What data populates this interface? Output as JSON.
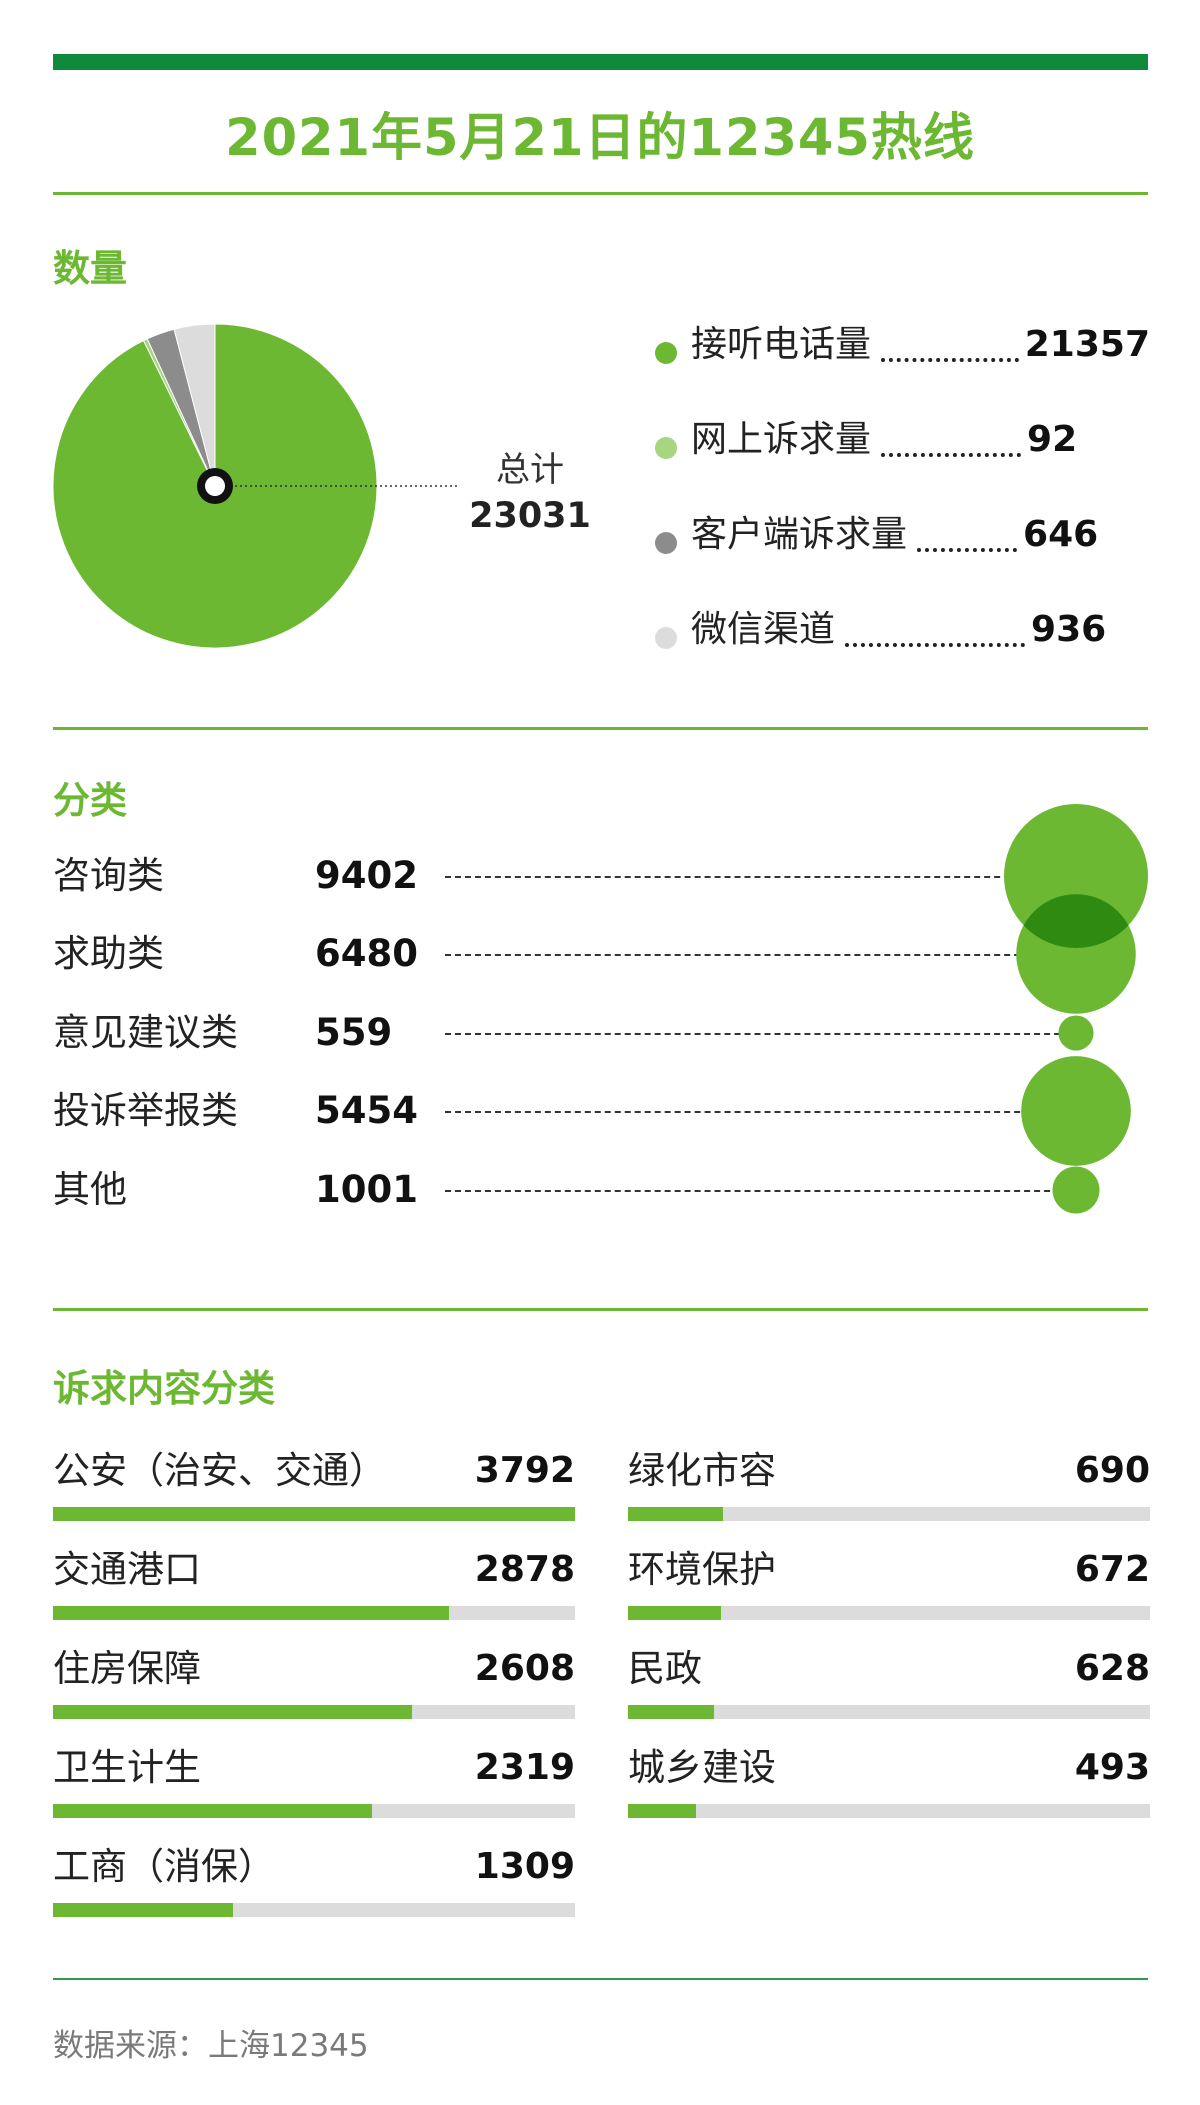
{
  "header": {
    "title": "2021年5月21日的12345热线"
  },
  "sections": {
    "quantity": "数量",
    "classification": "分类",
    "demand": "诉求内容分类"
  },
  "colors": {
    "brand_green": "#6cb832",
    "dark_green": "#0f8a3c",
    "light_green": "#a7d680",
    "gray": "#8c8c8c",
    "light_gray": "#dcdcdc"
  },
  "chart_data": [
    {
      "type": "pie",
      "center_label": "总计",
      "total": "23031",
      "slices": [
        {
          "name": "接听电话量",
          "value": 21357,
          "color": "#6cb832"
        },
        {
          "name": "网上诉求量",
          "value": 92,
          "color": "#a7d680"
        },
        {
          "name": "客户端诉求量",
          "value": 646,
          "color": "#8c8c8c"
        },
        {
          "name": "微信渠道",
          "value": 936,
          "color": "#dcdcdc"
        }
      ]
    },
    {
      "type": "bubble",
      "categories": [
        "咨询类",
        "求助类",
        "意见建议类",
        "投诉举报类",
        "其他"
      ],
      "values": [
        9402,
        6480,
        559,
        5454,
        1001
      ]
    },
    {
      "type": "bar",
      "max": 3792,
      "columns": [
        {
          "categories": [
            "公安（治安、交通）",
            "交通港口",
            "住房保障",
            "卫生计生",
            "工商（消保）"
          ],
          "values": [
            3792,
            2878,
            2608,
            2319,
            1309
          ]
        },
        {
          "categories": [
            "绿化市容",
            "环境保护",
            "民政",
            "城乡建设"
          ],
          "values": [
            690,
            672,
            628,
            493
          ]
        }
      ]
    }
  ],
  "footer": {
    "source": "数据来源：上海12345"
  }
}
